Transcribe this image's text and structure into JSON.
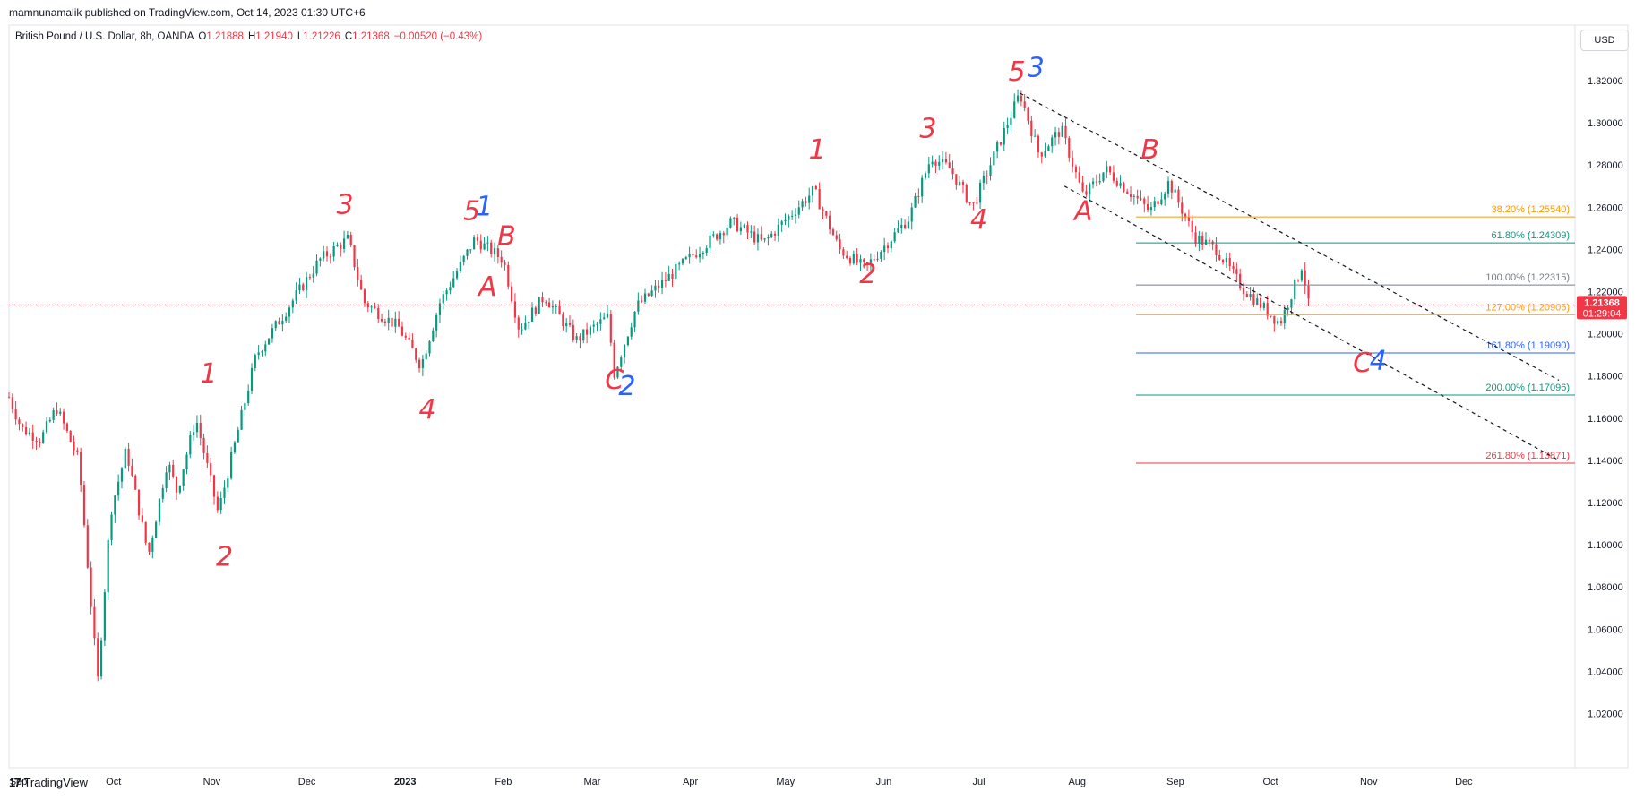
{
  "publisher_line": "mamnunamalik published on TradingView.com, Oct 14, 2023 01:30 UTC+6",
  "header": {
    "symbol": "British Pound / U.S. Dollar, 8h, OANDA",
    "open_label": "O",
    "open": "1.21888",
    "high_label": "H",
    "high": "1.21940",
    "low_label": "L",
    "low": "1.21226",
    "close_label": "C",
    "close": "1.21368",
    "change": "−0.00520 (−0.43%)"
  },
  "currency": "USD",
  "price_tag": {
    "price": "1.21368",
    "countdown": "01:29:04"
  },
  "footer_brand": "TradingView",
  "icons": {
    "footer_logo": "tradingview-logo-icon"
  },
  "colors": {
    "up": "#089981",
    "down": "#f23645",
    "orange": "#ff9800",
    "teal": "#089981",
    "gray": "#787b86",
    "blue": "#2962ff",
    "red": "#f23645"
  },
  "chart_data": {
    "type": "candlestick",
    "y_ticks": [
      "1.32000",
      "1.30000",
      "1.28000",
      "1.26000",
      "1.24000",
      "1.22000",
      "1.20000",
      "1.18000",
      "1.16000",
      "1.14000",
      "1.12000",
      "1.10000",
      "1.08000",
      "1.06000",
      "1.04000",
      "1.02000"
    ],
    "ylim": [
      1.005,
      1.34
    ],
    "x_ticks": [
      "Sep",
      "Oct",
      "Nov",
      "Dec",
      "2023",
      "Feb",
      "Mar",
      "Apr",
      "May",
      "Jun",
      "Jul",
      "Aug",
      "Sep",
      "Oct",
      "Nov",
      "Dec"
    ],
    "current_price": 1.21368,
    "price_path": [
      [
        "Aug 29 2022",
        1.17
      ],
      [
        "Sep 2 2022",
        1.155
      ],
      [
        "Sep 8 2022",
        1.15
      ],
      [
        "Sep 13 2022",
        1.165
      ],
      [
        "Sep 20 2022",
        1.14
      ],
      [
        "Sep 26 2022",
        1.035
      ],
      [
        "Sep 30 2022",
        1.115
      ],
      [
        "Oct 5 2022",
        1.145
      ],
      [
        "Oct 12 2022",
        1.095
      ],
      [
        "Oct 18 2022",
        1.14
      ],
      [
        "Oct 21 2022",
        1.125
      ],
      [
        "Oct 27 2022",
        1.16
      ],
      [
        "Nov 3 2022",
        1.115
      ],
      [
        "Nov 15 2022",
        1.19
      ],
      [
        "Nov 24 2022",
        1.21
      ],
      [
        "Dec 5 2022",
        1.235
      ],
      [
        "Dec 14 2022",
        1.245
      ],
      [
        "Dec 19 2022",
        1.215
      ],
      [
        "Dec 30 2022",
        1.203
      ],
      [
        "Jan 6 2023",
        1.185
      ],
      [
        "Jan 12 2023",
        1.215
      ],
      [
        "Jan 23 2023",
        1.245
      ],
      [
        "Feb 1 2023",
        1.235
      ],
      [
        "Feb 6 2023",
        1.202
      ],
      [
        "Feb 14 2023",
        1.218
      ],
      [
        "Feb 24 2023",
        1.197
      ],
      [
        "Mar 6 2023",
        1.208
      ],
      [
        "Mar 8 2023",
        1.181
      ],
      [
        "Mar 15 2023",
        1.213
      ],
      [
        "Mar 31 2023",
        1.235
      ],
      [
        "Apr 14 2023",
        1.253
      ],
      [
        "Apr 24 2023",
        1.243
      ],
      [
        "May 10 2023",
        1.268
      ],
      [
        "May 18 2023",
        1.24
      ],
      [
        "May 26 2023",
        1.231
      ],
      [
        "Jun 9 2023",
        1.255
      ],
      [
        "Jun 16 2023",
        1.284
      ],
      [
        "Jun 22 2023",
        1.278
      ],
      [
        "Jun 29 2023",
        1.26
      ],
      [
        "Jul 14 2023",
        1.314
      ],
      [
        "Jul 20 2023",
        1.285
      ],
      [
        "Jul 27 2023",
        1.297
      ],
      [
        "Aug 3 2023",
        1.265
      ],
      [
        "Aug 10 2023",
        1.278
      ],
      [
        "Aug 24 2023",
        1.258
      ],
      [
        "Aug 30 2023",
        1.272
      ],
      [
        "Sep 7 2023",
        1.246
      ],
      [
        "Sep 14 2023",
        1.24
      ],
      [
        "Sep 22 2023",
        1.222
      ],
      [
        "Oct 4 2023",
        1.205
      ],
      [
        "Oct 10 2023",
        1.228
      ],
      [
        "Oct 11 2023",
        1.233
      ],
      [
        "Oct 13 2023",
        1.2137
      ]
    ],
    "fib_levels": [
      {
        "label": "38.20% (1.25540)",
        "value": 1.2554,
        "color": "#ff9800"
      },
      {
        "label": "61.80% (1.24309)",
        "value": 1.24309,
        "color": "#089981"
      },
      {
        "label": "100.00% (1.22315)",
        "value": 1.22315,
        "color": "#787b86"
      },
      {
        "label": "127.00% (1.20906)",
        "value": 1.20906,
        "color": "#ff9800"
      },
      {
        "label": "161.80% (1.19090)",
        "value": 1.1909,
        "color": "#2962ff"
      },
      {
        "label": "200.00% (1.17096)",
        "value": 1.17096,
        "color": "#089981"
      },
      {
        "label": "261.80% (1.13871)",
        "value": 1.13871,
        "color": "#f23645"
      }
    ],
    "channel_lines": [
      {
        "from": [
          "Jul 14 2023",
          1.314
        ],
        "to": [
          "Dec 31 2023",
          1.178
        ]
      },
      {
        "from": [
          "Jul 28 2023",
          1.27
        ],
        "to": [
          "Dec 31 2023",
          1.14
        ]
      }
    ],
    "annotations": [
      {
        "text": "1",
        "color": "#f23645",
        "at": [
          "Oct 31 2022",
          1.177
        ]
      },
      {
        "text": "2",
        "color": "#f23645",
        "at": [
          "Nov 5 2022",
          1.09
        ]
      },
      {
        "text": "3",
        "color": "#f23645",
        "at": [
          "Dec 13 2022",
          1.257
        ]
      },
      {
        "text": "4",
        "color": "#f23645",
        "at": [
          "Jan 8 2023",
          1.16
        ]
      },
      {
        "text": "5",
        "color": "#f23645",
        "at": [
          "Jan 22 2023",
          1.254
        ]
      },
      {
        "text": "1",
        "color": "#2962ff",
        "at": [
          "Jan 26 2023",
          1.256
        ]
      },
      {
        "text": "B",
        "color": "#f23645",
        "at": [
          "Feb 2 2023",
          1.242
        ]
      },
      {
        "text": "A",
        "color": "#f23645",
        "at": [
          "Jan 27 2023",
          1.218
        ]
      },
      {
        "text": "C",
        "color": "#f23645",
        "at": [
          "Mar 8 2023",
          1.174
        ]
      },
      {
        "text": "2",
        "color": "#2962ff",
        "at": [
          "Mar 12 2023",
          1.171
        ]
      },
      {
        "text": "1",
        "color": "#f23645",
        "at": [
          "May 11 2023",
          1.283
        ]
      },
      {
        "text": "2",
        "color": "#f23645",
        "at": [
          "May 27 2023",
          1.224
        ]
      },
      {
        "text": "3",
        "color": "#f23645",
        "at": [
          "Jun 15 2023",
          1.293
        ]
      },
      {
        "text": "4",
        "color": "#f23645",
        "at": [
          "Jul 1 2023",
          1.25
        ]
      },
      {
        "text": "5",
        "color": "#f23645",
        "at": [
          "Jul 13 2023",
          1.32
        ]
      },
      {
        "text": "3",
        "color": "#2962ff",
        "at": [
          "Jul 19 2023",
          1.322
        ]
      },
      {
        "text": "A",
        "color": "#f23645",
        "at": [
          "Aug 3 2023",
          1.254
        ]
      },
      {
        "text": "B",
        "color": "#f23645",
        "at": [
          "Aug 24 2023",
          1.283
        ]
      },
      {
        "text": "C",
        "color": "#f23645",
        "at": [
          "Oct 30 2023",
          1.182
        ]
      },
      {
        "text": "4",
        "color": "#2962ff",
        "at": [
          "Nov 4 2023",
          1.183
        ]
      }
    ]
  }
}
